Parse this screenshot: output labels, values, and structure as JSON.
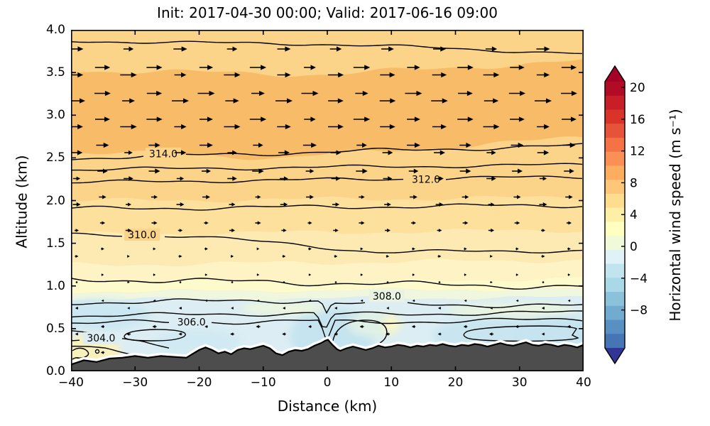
{
  "figure": {
    "title": "Init: 2017-04-30 00:00; Valid: 2017-06-16 09:00",
    "background": "#ffffff"
  },
  "axes": {
    "xlabel": "Distance (km)",
    "ylabel": "Altitude (km)",
    "xlim": [
      -40,
      40
    ],
    "ylim": [
      0,
      4
    ],
    "x_tick_values": [
      -40,
      -30,
      -20,
      -10,
      0,
      10,
      20,
      30,
      40
    ],
    "x_tick_labels": [
      "−40",
      "−30",
      "−20",
      "−10",
      "0",
      "10",
      "20",
      "30",
      "40"
    ],
    "y_tick_values": [
      0,
      0.5,
      1,
      1.5,
      2,
      2.5,
      3,
      3.5,
      4
    ],
    "y_tick_labels": [
      "0.0",
      "0.5",
      "1.0",
      "1.5",
      "2.0",
      "2.5",
      "3.0",
      "3.5",
      "4.0"
    ]
  },
  "colorbar": {
    "label": "Horizontal wind speed (m s⁻¹)",
    "tick_values": [
      20,
      16,
      12,
      8,
      4,
      0,
      -4,
      -8
    ],
    "tick_labels": [
      "20",
      "16",
      "12",
      "8",
      "4",
      "0",
      "−4",
      "−8"
    ],
    "extend": "both",
    "top_arrow_color": "#a50026",
    "bottom_arrow_color": "#313695",
    "body_colors_top_to_bottom": [
      "#b10b26",
      "#c81e27",
      "#d93429",
      "#e65338",
      "#f57245",
      "#fb9056",
      "#fdad60",
      "#fdc678",
      "#fedd8e",
      "#feefa6",
      "#ffffbf",
      "#f0f9d8",
      "#dff2f7",
      "#c2e4ef",
      "#a9d8e8",
      "#8cc1dc",
      "#72abd0",
      "#5890c3",
      "#4575b4"
    ]
  },
  "chart_data": {
    "type": "heatmap",
    "title": "Init: 2017-04-30 00:00; Valid: 2017-06-16 09:00",
    "xlabel": "Distance (km)",
    "ylabel": "Altitude (km)",
    "xlim": [
      -40,
      40
    ],
    "ylim": [
      0,
      4
    ],
    "colorbar_label": "Horizontal wind speed (m s⁻¹)",
    "colorbar_ticks": [
      20,
      16,
      12,
      8,
      4,
      0,
      -4,
      -8
    ],
    "contour_labels": [
      {
        "text": "314.0",
        "x_km": -25.6,
        "alt_km": 2.55,
        "bg": "#fbd48a"
      },
      {
        "text": "312.0",
        "x_km": 15.4,
        "alt_km": 2.25,
        "bg": "#fbd48a"
      },
      {
        "text": "310.0",
        "x_km": -28.9,
        "alt_km": 1.6,
        "bg": "#fbd48a"
      },
      {
        "text": "308.0",
        "x_km": 9.3,
        "alt_km": 0.88,
        "bg": "#e9f3e3"
      },
      {
        "text": "306.0",
        "x_km": -21.2,
        "alt_km": 0.58,
        "bg": "#dceef4"
      },
      {
        "text": "304.0",
        "x_km": -35.3,
        "alt_km": 0.39,
        "bg": "#dceef4"
      }
    ],
    "fill_bands": [
      {
        "alt_range": [
          3.78,
          4.0
        ],
        "wind_est": 7,
        "color": "#fbd48a"
      },
      {
        "alt_range": [
          2.87,
          3.78
        ],
        "wind_est": 9,
        "color": "#f8bc68"
      },
      {
        "alt_range": [
          2.0,
          2.87
        ],
        "wind_est": 6,
        "color": "#fbd48a"
      },
      {
        "alt_range": [
          1.6,
          2.0
        ],
        "wind_est": 4.5,
        "color": "#fde09c"
      },
      {
        "alt_range": [
          1.25,
          1.6
        ],
        "wind_est": 3,
        "color": "#fdeab2"
      },
      {
        "alt_range": [
          1.06,
          1.25
        ],
        "wind_est": 1.5,
        "color": "#fef3c4"
      },
      {
        "alt_range": [
          0.93,
          1.06
        ],
        "wind_est": 0.5,
        "color": "#fdfacb"
      },
      {
        "alt_range": [
          0.84,
          0.93
        ],
        "wind_est": -0.5,
        "color": "#f0f7df"
      },
      {
        "alt_range": [
          0.0,
          0.84
        ],
        "wind_est": -2.5,
        "color": "#dceef4"
      }
    ],
    "accent_patches": [
      {
        "x_km": -35.6,
        "alt_km": 0.66,
        "rx_km": 7.8,
        "ry_km": 0.18,
        "color": "#cbe7f1"
      },
      {
        "x_km": 0.8,
        "alt_km": 0.42,
        "rx_km": 6.6,
        "ry_km": 0.33,
        "color": "#c5e4ef"
      },
      {
        "x_km": 7.6,
        "alt_km": 0.55,
        "rx_km": 4.4,
        "ry_km": 0.15,
        "color": "#dff0e6"
      },
      {
        "x_km": 25.4,
        "alt_km": 0.42,
        "rx_km": 8.9,
        "ry_km": 0.21,
        "color": "#c8e5f0"
      },
      {
        "x_km": 36.5,
        "alt_km": 0.47,
        "rx_km": 6.6,
        "ry_km": 0.18,
        "color": "#c5e4ef"
      },
      {
        "x_km": -20.1,
        "alt_km": 0.34,
        "rx_km": 6.6,
        "ry_km": 0.15,
        "color": "#d0e9f2"
      },
      {
        "x_km": -37.2,
        "alt_km": 0.22,
        "rx_km": 5.0,
        "ry_km": 0.21,
        "color": "#f8f1bc"
      },
      {
        "x_km": 28.7,
        "alt_km": 0.72,
        "rx_km": 10.0,
        "ry_km": 0.08,
        "color": "#e8f4df"
      },
      {
        "x_km": -6.8,
        "alt_km": 0.74,
        "rx_km": 6.6,
        "ry_km": 0.07,
        "color": "#edf6dc"
      },
      {
        "x_km": 9.9,
        "alt_km": 0.55,
        "rx_km": 1.3,
        "ry_km": 0.1,
        "color": "#fbf7c9"
      }
    ],
    "wind_profile_u_ms": [
      {
        "alt": 3.85,
        "u": 7
      },
      {
        "alt": 3.55,
        "u": 8.5
      },
      {
        "alt": 3.25,
        "u": 9
      },
      {
        "alt": 2.95,
        "u": 8.5
      },
      {
        "alt": 2.7,
        "u": 7
      },
      {
        "alt": 2.45,
        "u": 6
      },
      {
        "alt": 2.2,
        "u": 5
      },
      {
        "alt": 1.95,
        "u": 4
      },
      {
        "alt": 1.7,
        "u": 3
      },
      {
        "alt": 1.45,
        "u": 1.8
      },
      {
        "alt": 1.2,
        "u": 1
      },
      {
        "alt": 1.0,
        "u": 0.4
      },
      {
        "alt": 0.85,
        "u": -0.8
      },
      {
        "alt": 0.7,
        "u": -1.5
      },
      {
        "alt": 0.5,
        "u": -2.2
      },
      {
        "alt": 0.3,
        "u": -2
      },
      {
        "alt": 0.12,
        "u": -1.5
      }
    ],
    "terrain_color": "#4d4d4d",
    "terrain_profile": [
      [
        -40,
        0.08
      ],
      [
        -38,
        0.13
      ],
      [
        -36,
        0.11
      ],
      [
        -34,
        0.15
      ],
      [
        -32,
        0.16
      ],
      [
        -30,
        0.18
      ],
      [
        -28,
        0.16
      ],
      [
        -26,
        0.18
      ],
      [
        -24,
        0.17
      ],
      [
        -22,
        0.16
      ],
      [
        -20,
        0.25
      ],
      [
        -19,
        0.28
      ],
      [
        -18,
        0.25
      ],
      [
        -17,
        0.21
      ],
      [
        -16,
        0.23
      ],
      [
        -15,
        0.2
      ],
      [
        -14,
        0.25
      ],
      [
        -13,
        0.27
      ],
      [
        -12,
        0.26
      ],
      [
        -11,
        0.28
      ],
      [
        -10,
        0.3
      ],
      [
        -9,
        0.27
      ],
      [
        -8,
        0.21
      ],
      [
        -7,
        0.19
      ],
      [
        -6,
        0.23
      ],
      [
        -5,
        0.25
      ],
      [
        -4,
        0.24
      ],
      [
        -3,
        0.26
      ],
      [
        -2,
        0.3
      ],
      [
        -1,
        0.33
      ],
      [
        -0.3,
        0.36
      ],
      [
        0.1,
        0.37
      ],
      [
        0.8,
        0.31
      ],
      [
        1.5,
        0.26
      ],
      [
        2,
        0.24
      ],
      [
        3,
        0.27
      ],
      [
        4,
        0.29
      ],
      [
        5,
        0.27
      ],
      [
        6,
        0.25
      ],
      [
        7,
        0.27
      ],
      [
        8,
        0.3
      ],
      [
        9,
        0.28
      ],
      [
        10,
        0.29
      ],
      [
        11,
        0.31
      ],
      [
        12,
        0.3
      ],
      [
        13,
        0.28
      ],
      [
        14,
        0.3
      ],
      [
        15,
        0.29
      ],
      [
        16,
        0.31
      ],
      [
        17,
        0.3
      ],
      [
        18,
        0.32
      ],
      [
        19,
        0.3
      ],
      [
        20,
        0.29
      ],
      [
        21,
        0.31
      ],
      [
        22,
        0.3
      ],
      [
        23,
        0.32
      ],
      [
        24,
        0.31
      ],
      [
        25,
        0.29
      ],
      [
        26,
        0.31
      ],
      [
        27,
        0.33
      ],
      [
        28,
        0.31
      ],
      [
        29,
        0.3
      ],
      [
        30,
        0.32
      ],
      [
        31,
        0.34
      ],
      [
        32,
        0.31
      ],
      [
        33,
        0.3
      ],
      [
        34,
        0.32
      ],
      [
        35,
        0.31
      ],
      [
        36,
        0.29
      ],
      [
        37,
        0.31
      ],
      [
        38,
        0.3
      ],
      [
        39,
        0.28
      ],
      [
        40,
        0.31
      ]
    ],
    "quiver_note": "arrows point right (positive) above ~0.9 km, left (negative) below"
  }
}
